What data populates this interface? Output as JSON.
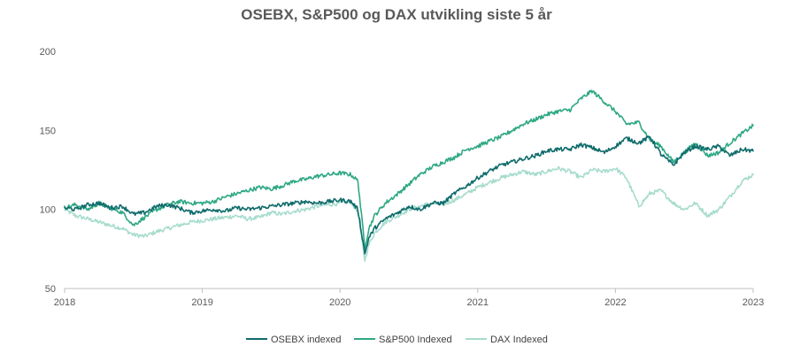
{
  "chart_data": {
    "type": "line",
    "title": "OSEBX, S&P500 og DAX utvikling siste 5 år",
    "xlabel": "",
    "ylabel": "",
    "xlim": [
      2018,
      2023
    ],
    "ylim": [
      50,
      200
    ],
    "y_ticks": [
      50,
      100,
      150,
      200
    ],
    "x_ticks": [
      2018,
      2019,
      2020,
      2021,
      2022,
      2023
    ],
    "grid": false,
    "legend_position": "bottom",
    "series": [
      {
        "name": "DAX Indexed",
        "color": "#a6dccd",
        "x": [
          2018.0,
          2018.08,
          2018.17,
          2018.25,
          2018.33,
          2018.42,
          2018.5,
          2018.58,
          2018.67,
          2018.75,
          2018.83,
          2018.92,
          2019.0,
          2019.08,
          2019.17,
          2019.25,
          2019.33,
          2019.42,
          2019.5,
          2019.58,
          2019.67,
          2019.75,
          2019.83,
          2019.92,
          2020.0,
          2020.08,
          2020.13,
          2020.18,
          2020.21,
          2020.25,
          2020.33,
          2020.42,
          2020.5,
          2020.58,
          2020.67,
          2020.75,
          2020.83,
          2020.92,
          2021.0,
          2021.08,
          2021.17,
          2021.25,
          2021.33,
          2021.42,
          2021.5,
          2021.58,
          2021.67,
          2021.75,
          2021.83,
          2021.92,
          2022.0,
          2022.08,
          2022.17,
          2022.25,
          2022.33,
          2022.42,
          2022.5,
          2022.58,
          2022.67,
          2022.75,
          2022.83,
          2022.92,
          2023.0
        ],
        "y": [
          100,
          96,
          94,
          92,
          90,
          88,
          84,
          83,
          86,
          88,
          90,
          92,
          93,
          94,
          95,
          96,
          94,
          95,
          98,
          97,
          99,
          100,
          102,
          103,
          104,
          105,
          98,
          68,
          78,
          85,
          92,
          96,
          100,
          102,
          104,
          103,
          106,
          110,
          114,
          117,
          120,
          122,
          124,
          122,
          124,
          126,
          124,
          120,
          125,
          124,
          126,
          120,
          102,
          110,
          112,
          104,
          100,
          104,
          96,
          100,
          108,
          118,
          122
        ]
      },
      {
        "name": "S&P500 Indexed",
        "color": "#2ea884",
        "x": [
          2018.0,
          2018.08,
          2018.17,
          2018.25,
          2018.33,
          2018.42,
          2018.5,
          2018.58,
          2018.67,
          2018.75,
          2018.83,
          2018.92,
          2019.0,
          2019.08,
          2019.17,
          2019.25,
          2019.33,
          2019.42,
          2019.5,
          2019.58,
          2019.67,
          2019.75,
          2019.83,
          2019.92,
          2020.0,
          2020.08,
          2020.13,
          2020.18,
          2020.21,
          2020.25,
          2020.33,
          2020.42,
          2020.5,
          2020.58,
          2020.67,
          2020.75,
          2020.83,
          2020.92,
          2021.0,
          2021.08,
          2021.17,
          2021.25,
          2021.33,
          2021.42,
          2021.5,
          2021.58,
          2021.67,
          2021.75,
          2021.83,
          2021.92,
          2022.0,
          2022.08,
          2022.17,
          2022.25,
          2022.33,
          2022.42,
          2022.5,
          2022.58,
          2022.67,
          2022.75,
          2022.83,
          2022.92,
          2023.0
        ],
        "y": [
          101,
          103,
          100,
          104,
          101,
          98,
          90,
          95,
          100,
          103,
          105,
          104,
          104,
          105,
          108,
          110,
          112,
          114,
          113,
          115,
          118,
          119,
          121,
          122,
          123,
          122,
          118,
          76,
          88,
          96,
          104,
          110,
          116,
          122,
          127,
          130,
          133,
          138,
          140,
          143,
          146,
          150,
          154,
          157,
          160,
          162,
          163,
          170,
          175,
          168,
          162,
          154,
          155,
          144,
          140,
          130,
          136,
          142,
          134,
          136,
          142,
          148,
          153
        ]
      },
      {
        "name": "OSEBX indexed",
        "color": "#0f6b6b",
        "x": [
          2018.0,
          2018.08,
          2018.17,
          2018.25,
          2018.33,
          2018.42,
          2018.5,
          2018.58,
          2018.67,
          2018.75,
          2018.83,
          2018.92,
          2019.0,
          2019.08,
          2019.17,
          2019.25,
          2019.33,
          2019.42,
          2019.5,
          2019.58,
          2019.67,
          2019.75,
          2019.83,
          2019.92,
          2020.0,
          2020.08,
          2020.13,
          2020.18,
          2020.21,
          2020.25,
          2020.33,
          2020.42,
          2020.5,
          2020.58,
          2020.67,
          2020.75,
          2020.83,
          2020.92,
          2021.0,
          2021.08,
          2021.17,
          2021.25,
          2021.33,
          2021.42,
          2021.5,
          2021.58,
          2021.67,
          2021.75,
          2021.83,
          2021.92,
          2022.0,
          2022.08,
          2022.17,
          2022.25,
          2022.33,
          2022.42,
          2022.5,
          2022.58,
          2022.67,
          2022.75,
          2022.83,
          2022.92,
          2023.0
        ],
        "y": [
          101,
          100,
          103,
          104,
          101,
          102,
          97,
          98,
          102,
          103,
          101,
          98,
          99,
          100,
          99,
          101,
          100,
          101,
          102,
          103,
          104,
          105,
          104,
          105,
          106,
          105,
          100,
          72,
          82,
          88,
          94,
          98,
          102,
          100,
          104,
          104,
          110,
          115,
          120,
          124,
          128,
          130,
          132,
          134,
          137,
          138,
          138,
          141,
          139,
          136,
          140,
          145,
          142,
          146,
          135,
          128,
          136,
          140,
          138,
          140,
          134,
          138,
          137
        ]
      }
    ]
  }
}
